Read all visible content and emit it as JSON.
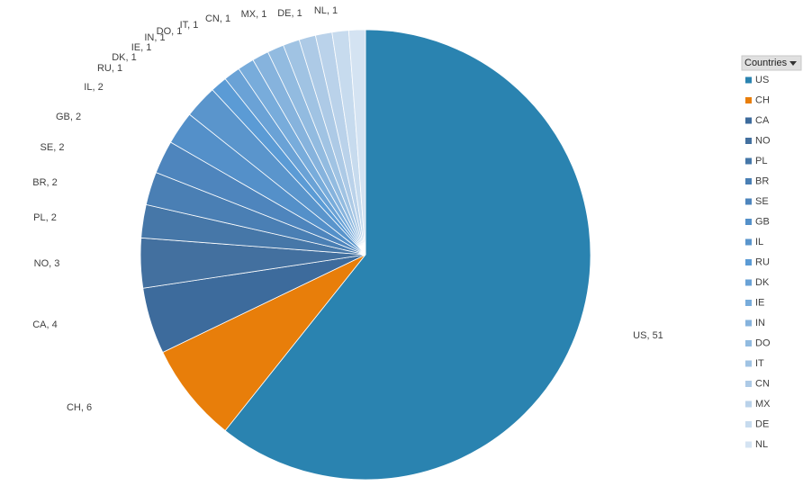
{
  "chart_data": {
    "type": "pie",
    "legend_title": "Countries",
    "categories": [
      "US",
      "CH",
      "CA",
      "NO",
      "PL",
      "BR",
      "SE",
      "GB",
      "IL",
      "RU",
      "DK",
      "IE",
      "IN",
      "DO",
      "IT",
      "CN",
      "MX",
      "DE",
      "NL"
    ],
    "values": [
      51,
      6,
      4,
      3,
      2,
      2,
      2,
      2,
      2,
      1,
      1,
      1,
      1,
      1,
      1,
      1,
      1,
      1,
      1
    ],
    "value_labels": [
      "US, 51",
      "CH, 6",
      "CA, 4",
      "NO, 3",
      "PL, 2",
      "BR, 2",
      "SE, 2",
      "GB, 2",
      "IL, 2",
      "RU, 1",
      "DK, 1",
      "IE, 1",
      "IN, 1",
      "DO, 1",
      "IT, 1",
      "CN, 1",
      "MX, 1",
      "DE, 1",
      "NL, 1"
    ],
    "colors": [
      "#2a83b0",
      "#e87e0a",
      "#3d6b9c",
      "#43709f",
      "#4677a8",
      "#4a7fb4",
      "#4e85bd",
      "#5490c9",
      "#5a95cc",
      "#5b9bd5",
      "#6aa2d6",
      "#78acdb",
      "#86b3dd",
      "#92bbe0",
      "#a0c3e3",
      "#adcae6",
      "#bad2ea",
      "#c7dbee",
      "#d4e3f2"
    ],
    "legend": "right"
  }
}
